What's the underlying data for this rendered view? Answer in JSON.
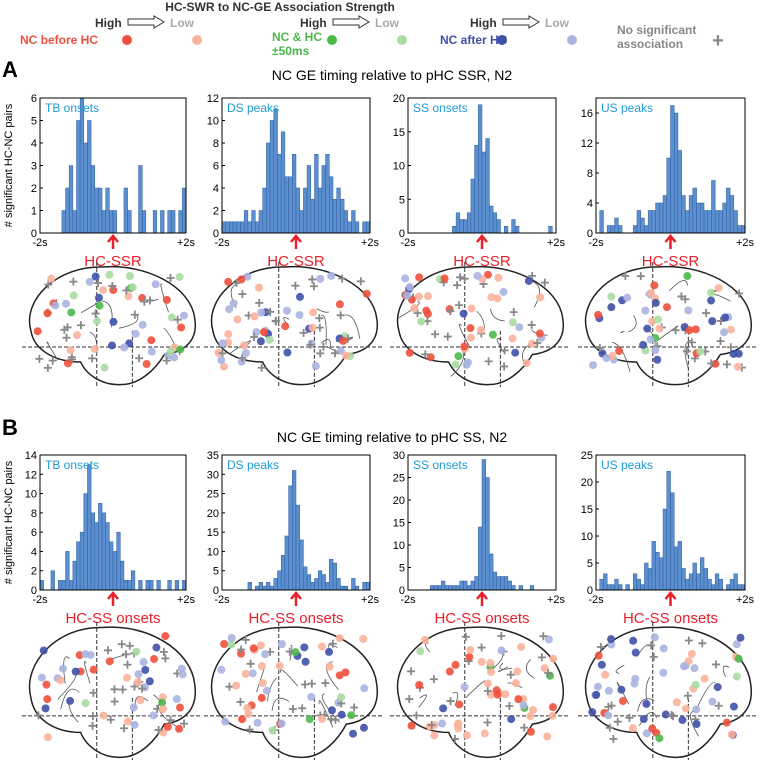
{
  "legend": {
    "title": "HC-SWR to NC-GE Association Strength",
    "high": "High",
    "low": "Low",
    "groups": [
      {
        "name": "NC before HC",
        "color_high": "#f0503c",
        "color_low": "#f9b39b"
      },
      {
        "name": "NC & HC ±50ms",
        "color_high": "#4bb84b",
        "color_low": "#a8dca0"
      },
      {
        "name": "NC after HC",
        "color_high": "#3f51a8",
        "color_low": "#a9b4e0"
      }
    ],
    "none": {
      "name": "No significant association",
      "color": "#888888",
      "symbol": "+"
    }
  },
  "panels": [
    {
      "label": "A",
      "title": "NC GE timing relative to pHC SSR, N2",
      "ylabel": "# significant HC-NC pairs"
    },
    {
      "label": "B",
      "title": "NC GE timing relative to pHC SS, N2",
      "ylabel": "# significant HC-NC pairs"
    }
  ],
  "chart_data": [
    {
      "type": "histogram",
      "annotation": "TB onsets",
      "color": "#5b8fcf",
      "bins": [
        -2,
        -1.9,
        -1.8,
        -1.7,
        -1.6,
        -1.5,
        -1.4,
        -1.3,
        -1.2,
        -1.1,
        -1,
        -0.9,
        -0.8,
        -0.7,
        -0.6,
        -0.5,
        -0.4,
        -0.3,
        -0.2,
        -0.1,
        0,
        0.1,
        0.2,
        0.3,
        0.4,
        0.5,
        0.6,
        0.7,
        0.8,
        0.9,
        1,
        1.1,
        1.2,
        1.3,
        1.4,
        1.5,
        1.6,
        1.7,
        1.8,
        1.9,
        2
      ],
      "values": [
        0,
        0,
        0,
        0,
        0,
        0,
        1,
        2,
        3,
        1,
        5,
        6,
        4,
        5,
        3,
        2,
        2,
        1,
        2,
        1,
        1,
        0,
        0,
        2,
        1,
        0,
        0,
        3,
        1,
        0,
        0,
        1,
        0,
        1,
        0,
        1,
        1,
        0,
        1,
        2
      ],
      "xlim": [
        -2,
        2
      ],
      "xticks": [
        {
          "value": -2,
          "label": "-2s"
        },
        {
          "value": 2,
          "label": "+2s"
        }
      ],
      "ylim": [
        0,
        6
      ],
      "yticks": [
        0,
        1,
        2,
        3,
        4,
        5,
        6
      ],
      "marker": {
        "value": 0,
        "label": "HC-SSR"
      }
    },
    {
      "type": "histogram",
      "annotation": "DS peaks",
      "color": "#5b8fcf",
      "bins": [
        -2,
        -1.9,
        -1.8,
        -1.7,
        -1.6,
        -1.5,
        -1.4,
        -1.3,
        -1.2,
        -1.1,
        -1,
        -0.9,
        -0.8,
        -0.7,
        -0.6,
        -0.5,
        -0.4,
        -0.3,
        -0.2,
        -0.1,
        0,
        0.1,
        0.2,
        0.3,
        0.4,
        0.5,
        0.6,
        0.7,
        0.8,
        0.9,
        1,
        1.1,
        1.2,
        1.3,
        1.4,
        1.5,
        1.6,
        1.7,
        1.8,
        1.9,
        2
      ],
      "values": [
        1,
        1,
        1,
        1,
        1,
        1,
        2,
        1,
        2,
        1,
        2,
        4,
        8,
        10,
        11,
        7,
        9,
        5,
        5,
        7,
        4,
        2,
        4,
        6,
        3,
        7,
        4,
        6,
        7,
        5,
        3,
        4,
        3,
        2,
        1,
        2,
        1,
        0,
        1,
        1
      ],
      "xlim": [
        -2,
        2
      ],
      "xticks": [
        {
          "value": -2,
          "label": "-2s"
        },
        {
          "value": 2,
          "label": "+2s"
        }
      ],
      "ylim": [
        0,
        12
      ],
      "yticks": [
        0,
        2,
        4,
        6,
        8,
        10,
        12
      ],
      "marker": {
        "value": 0,
        "label": "HC-SSR"
      }
    },
    {
      "type": "histogram",
      "annotation": "SS onsets",
      "color": "#5b8fcf",
      "bins": [
        -2,
        -1.9,
        -1.8,
        -1.7,
        -1.6,
        -1.5,
        -1.4,
        -1.3,
        -1.2,
        -1.1,
        -1,
        -0.9,
        -0.8,
        -0.7,
        -0.6,
        -0.5,
        -0.4,
        -0.3,
        -0.2,
        -0.1,
        0,
        0.1,
        0.2,
        0.3,
        0.4,
        0.5,
        0.6,
        0.7,
        0.8,
        0.9,
        1,
        1.1,
        1.2,
        1.3,
        1.4,
        1.5,
        1.6,
        1.7,
        1.8,
        1.9,
        2
      ],
      "values": [
        0,
        0,
        0,
        0,
        0,
        0,
        0,
        0,
        0,
        0,
        0,
        0,
        1,
        3,
        2,
        2,
        3,
        8,
        13,
        19,
        12,
        14,
        4,
        3,
        2,
        0,
        1,
        0,
        2,
        1,
        0,
        0,
        0,
        0,
        0,
        0,
        0,
        0,
        1,
        0
      ],
      "xlim": [
        -2,
        2
      ],
      "xticks": [
        {
          "value": -2,
          "label": "-2s"
        },
        {
          "value": 2,
          "label": "+2s"
        }
      ],
      "ylim": [
        0,
        20
      ],
      "yticks": [
        0,
        5,
        10,
        15,
        20
      ],
      "marker": {
        "value": 0,
        "label": "HC-SSR"
      }
    },
    {
      "type": "histogram",
      "annotation": "US peaks",
      "color": "#5b8fcf",
      "bins": [
        -2,
        -1.9,
        -1.8,
        -1.7,
        -1.6,
        -1.5,
        -1.4,
        -1.3,
        -1.2,
        -1.1,
        -1,
        -0.9,
        -0.8,
        -0.7,
        -0.6,
        -0.5,
        -0.4,
        -0.3,
        -0.2,
        -0.1,
        0,
        0.1,
        0.2,
        0.3,
        0.4,
        0.5,
        0.6,
        0.7,
        0.8,
        0.9,
        1,
        1.1,
        1.2,
        1.3,
        1.4,
        1.5,
        1.6,
        1.7,
        1.8,
        1.9,
        2
      ],
      "values": [
        0,
        3,
        0,
        1,
        1,
        2,
        1,
        0,
        0,
        0,
        1,
        3,
        2,
        1,
        3,
        3,
        4,
        4,
        5,
        10,
        17,
        16,
        11,
        5,
        3,
        5,
        6,
        4,
        4,
        3,
        3,
        7,
        3,
        3,
        4,
        6,
        5,
        3,
        1,
        1
      ],
      "xlim": [
        -2,
        2
      ],
      "xticks": [
        {
          "value": -2,
          "label": "-2s"
        },
        {
          "value": 2,
          "label": "+2s"
        }
      ],
      "ylim": [
        0,
        18
      ],
      "yticks": [
        0,
        4,
        8,
        12,
        16
      ],
      "marker": {
        "value": 0,
        "label": "HC-SSR"
      }
    },
    {
      "type": "histogram",
      "annotation": "TB onsets",
      "color": "#5b8fcf",
      "bins": [
        -2,
        -1.9,
        -1.8,
        -1.7,
        -1.6,
        -1.5,
        -1.4,
        -1.3,
        -1.2,
        -1.1,
        -1,
        -0.9,
        -0.8,
        -0.7,
        -0.6,
        -0.5,
        -0.4,
        -0.3,
        -0.2,
        -0.1,
        0,
        0.1,
        0.2,
        0.3,
        0.4,
        0.5,
        0.6,
        0.7,
        0.8,
        0.9,
        1,
        1.1,
        1.2,
        1.3,
        1.4,
        1.5,
        1.6,
        1.7,
        1.8,
        1.9,
        2
      ],
      "values": [
        1,
        0,
        0,
        2,
        0,
        1,
        1,
        4,
        1,
        3,
        5,
        6,
        10,
        13,
        8,
        7,
        9,
        8,
        7,
        5,
        4,
        6,
        3,
        1,
        1,
        2,
        0,
        1,
        0,
        1,
        1,
        0,
        1,
        0,
        0,
        1,
        0,
        1,
        0,
        1
      ],
      "xlim": [
        -2,
        2
      ],
      "xticks": [
        {
          "value": -2,
          "label": "-2s"
        },
        {
          "value": 2,
          "label": "+2s"
        }
      ],
      "ylim": [
        0,
        14
      ],
      "yticks": [
        0,
        2,
        4,
        6,
        8,
        10,
        12,
        14
      ],
      "marker": {
        "value": 0,
        "label": "HC-SS onsets"
      }
    },
    {
      "type": "histogram",
      "annotation": "DS peaks",
      "color": "#5b8fcf",
      "bins": [
        -2,
        -1.9,
        -1.8,
        -1.7,
        -1.6,
        -1.5,
        -1.4,
        -1.3,
        -1.2,
        -1.1,
        -1,
        -0.9,
        -0.8,
        -0.7,
        -0.6,
        -0.5,
        -0.4,
        -0.3,
        -0.2,
        -0.1,
        0,
        0.1,
        0.2,
        0.3,
        0.4,
        0.5,
        0.6,
        0.7,
        0.8,
        0.9,
        1,
        1.1,
        1.2,
        1.3,
        1.4,
        1.5,
        1.6,
        1.7,
        1.8,
        1.9,
        2
      ],
      "values": [
        0,
        0,
        0,
        0,
        0,
        0,
        0,
        2,
        0,
        1,
        2,
        1,
        2,
        1,
        3,
        5,
        9,
        14,
        27,
        31,
        22,
        13,
        6,
        4,
        2,
        3,
        5,
        4,
        2,
        8,
        7,
        3,
        1,
        1,
        0,
        3,
        1,
        0,
        2,
        2
      ],
      "xlim": [
        -2,
        2
      ],
      "xticks": [
        {
          "value": -2,
          "label": "-2s"
        },
        {
          "value": 2,
          "label": "+2s"
        }
      ],
      "ylim": [
        0,
        35
      ],
      "yticks": [
        0,
        5,
        10,
        15,
        20,
        25,
        30,
        35
      ],
      "marker": {
        "value": 0,
        "label": "HC-SS onsets"
      }
    },
    {
      "type": "histogram",
      "annotation": "SS onsets",
      "color": "#5b8fcf",
      "bins": [
        -2,
        -1.9,
        -1.8,
        -1.7,
        -1.6,
        -1.5,
        -1.4,
        -1.3,
        -1.2,
        -1.1,
        -1,
        -0.9,
        -0.8,
        -0.7,
        -0.6,
        -0.5,
        -0.4,
        -0.3,
        -0.2,
        -0.1,
        0,
        0.1,
        0.2,
        0.3,
        0.4,
        0.5,
        0.6,
        0.7,
        0.8,
        0.9,
        1,
        1.1,
        1.2,
        1.3,
        1.4,
        1.5,
        1.6,
        1.7,
        1.8,
        1.9,
        2
      ],
      "values": [
        0,
        0,
        0,
        0,
        0,
        0,
        1,
        1,
        1,
        2,
        1,
        1,
        1,
        1,
        2,
        2,
        1,
        2,
        3,
        14,
        29,
        25,
        8,
        4,
        3,
        3,
        3,
        2,
        1,
        0,
        1,
        0,
        0,
        1,
        0,
        0,
        0,
        0,
        0,
        0
      ],
      "xlim": [
        -2,
        2
      ],
      "xticks": [
        {
          "value": -2,
          "label": "-2s"
        },
        {
          "value": 2,
          "label": "+2s"
        }
      ],
      "ylim": [
        0,
        30
      ],
      "yticks": [
        0,
        5,
        10,
        15,
        20,
        25,
        30
      ],
      "marker": {
        "value": 0,
        "label": "HC-SS onsets"
      }
    },
    {
      "type": "histogram",
      "annotation": "US peaks",
      "color": "#5b8fcf",
      "bins": [
        -2,
        -1.9,
        -1.8,
        -1.7,
        -1.6,
        -1.5,
        -1.4,
        -1.3,
        -1.2,
        -1.1,
        -1,
        -0.9,
        -0.8,
        -0.7,
        -0.6,
        -0.5,
        -0.4,
        -0.3,
        -0.2,
        -0.1,
        0,
        0.1,
        0.2,
        0.3,
        0.4,
        0.5,
        0.6,
        0.7,
        0.8,
        0.9,
        1,
        1.1,
        1.2,
        1.3,
        1.4,
        1.5,
        1.6,
        1.7,
        1.8,
        1.9,
        2
      ],
      "values": [
        0,
        2,
        3,
        1,
        1,
        2,
        1,
        0,
        1,
        0,
        3,
        2,
        1,
        5,
        4,
        9,
        7,
        6,
        15,
        22,
        18,
        8,
        9,
        4,
        2,
        3,
        5,
        3,
        6,
        4,
        2,
        1,
        3,
        2,
        0,
        1,
        2,
        3,
        1,
        1
      ],
      "xlim": [
        -2,
        2
      ],
      "xticks": [
        {
          "value": -2,
          "label": "-2s"
        },
        {
          "value": 2,
          "label": "+2s"
        }
      ],
      "ylim": [
        0,
        25
      ],
      "yticks": [
        0,
        5,
        10,
        15,
        20,
        25
      ],
      "marker": {
        "value": 0,
        "label": "HC-SS onsets"
      }
    }
  ]
}
